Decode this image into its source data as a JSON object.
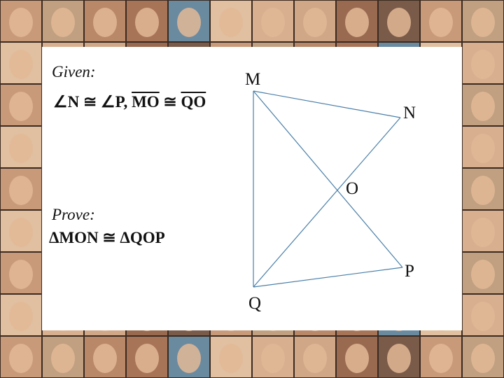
{
  "given": {
    "label": "Given:",
    "parts": [
      "∠N ≅ ∠P, ",
      "MO",
      " ≅ ",
      "QO"
    ]
  },
  "prove": {
    "label": "Prove:",
    "statement": "ΔMON ≅ ΔQOP"
  },
  "points": {
    "M": "M",
    "N": "N",
    "O": "O",
    "P": "P",
    "Q": "Q"
  }
}
